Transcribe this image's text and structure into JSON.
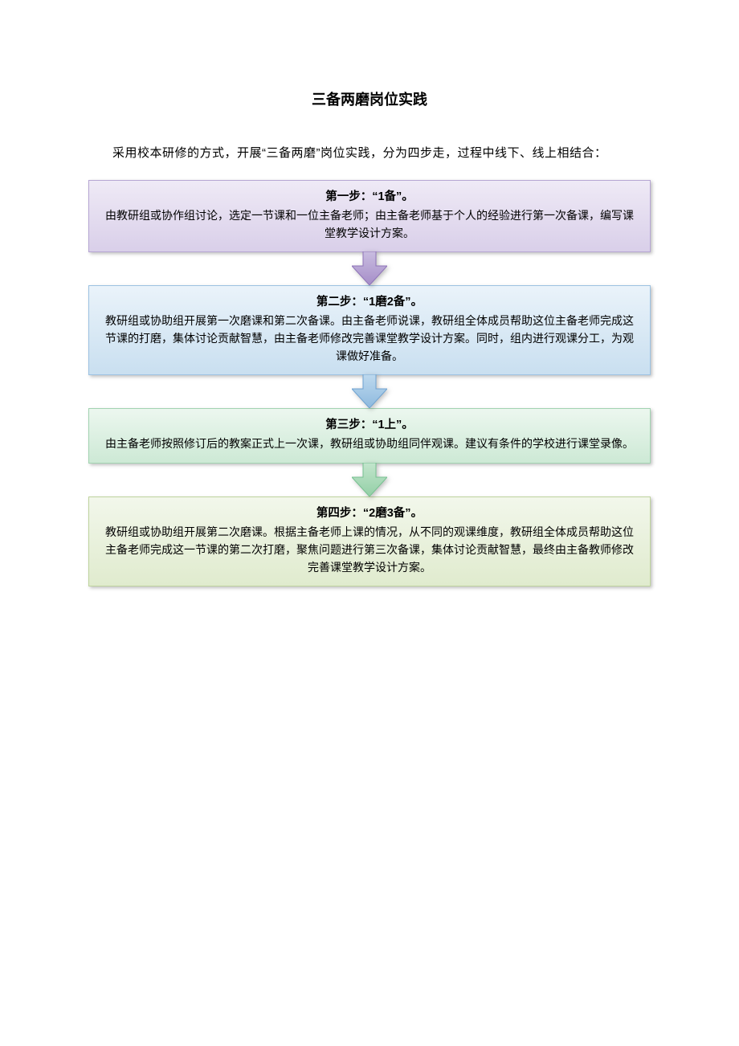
{
  "title": "三备两磨岗位实践",
  "intro": "采用校本研修的方式，开展“三备两磨”岗位实践，分为四步走，过程中线下、线上相结合：",
  "page_background": "#ffffff",
  "text_color": "#000000",
  "box_shadow": "2px 2px 4px rgba(0,0,0,0.25)",
  "steps": [
    {
      "title": "第一步：“1备”。",
      "body": "由教研组或协作组讨论，选定一节课和一位主备老师；由主备老师基于个人的经验进行第一次备课，编写课堂教学设计方案。",
      "bg_top": "#efeaf6",
      "bg_bottom": "#d9cfe9",
      "border": "#b6a6d3",
      "arrow_top": "#c9bde0",
      "arrow_bottom": "#a58dc8",
      "arrow_border": "#8f74b9"
    },
    {
      "title": "第二步：“1磨2备”。",
      "body": "教研组或协助组开展第一次磨课和第二次备课。由主备老师说课，教研组全体成员帮助这位主备老师完成这节课的打磨，集体讨论贡献智慧，由主备老师修改完善课堂教学设计方案。同时，组内进行观课分工，为观课做好准备。",
      "bg_top": "#eaf3fa",
      "bg_bottom": "#c9dff0",
      "border": "#9cc2e2",
      "arrow_top": "#bdd9ee",
      "arrow_bottom": "#8eb9de",
      "arrow_border": "#6fa3d2"
    },
    {
      "title": "第三步：“1上”。",
      "body": "由主备老师按照修订后的教案正式上一次课，教研组或协助组同伴观课。建议有条件的学校进行课堂录像。",
      "bg_top": "#ecf7ef",
      "bg_bottom": "#cde9d5",
      "border": "#a2d3b1",
      "arrow_top": "#c2e5cc",
      "arrow_bottom": "#93cfa6",
      "arrow_border": "#77c191"
    },
    {
      "title": "第四步：“2磨3备”。",
      "body": "教研组或协助组开展第二次磨课。根据主备老师上课的情况，从不同的观课维度，教研组全体成员帮助这位主备老师完成这一节课的第二次打磨，聚焦问题进行第三次备课，集体讨论贡献智慧，最终由主备教师修改完善课堂教学设计方案。",
      "bg_top": "#f2f7eb",
      "bg_bottom": "#e0ebce",
      "border": "#bfd49e",
      "arrow_top": null,
      "arrow_bottom": null,
      "arrow_border": null
    }
  ]
}
